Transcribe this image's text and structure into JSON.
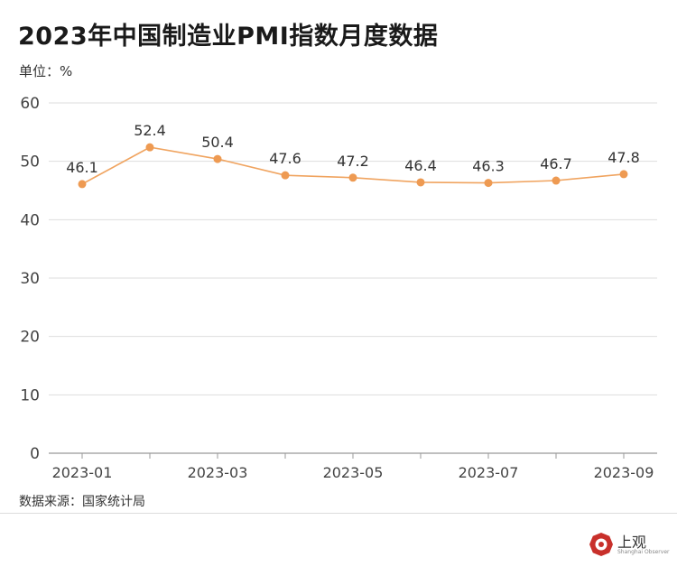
{
  "title": "2023年中国制造业PMI指数月度数据",
  "unit_label": "单位：%",
  "source_label": "数据来源：国家统计局",
  "logo": {
    "text": "上观",
    "subtext": "Shanghai Observer",
    "icon": "shanghai-observer-logo-icon"
  },
  "colors": {
    "line": "#f0a460",
    "point": "#ee9a52",
    "grid": "#dddddd",
    "axis": "#999999"
  },
  "chart_data": {
    "type": "line",
    "x": [
      "2023-01",
      "2023-02",
      "2023-03",
      "2023-04",
      "2023-05",
      "2023-06",
      "2023-07",
      "2023-08",
      "2023-09"
    ],
    "x_tick_labels": [
      "2023-01",
      "",
      "2023-03",
      "",
      "2023-05",
      "",
      "2023-07",
      "",
      "2023-09"
    ],
    "values": [
      46.1,
      52.4,
      50.4,
      47.6,
      47.2,
      46.4,
      46.3,
      46.7,
      47.8
    ],
    "data_labels": [
      "46.1",
      "52.4",
      "50.4",
      "47.6",
      "47.2",
      "46.4",
      "46.3",
      "46.7",
      "47.8"
    ],
    "y_ticks": [
      0,
      10,
      20,
      30,
      40,
      50,
      60
    ],
    "ylim": [
      0,
      60
    ],
    "grid": true,
    "legend": "none"
  }
}
